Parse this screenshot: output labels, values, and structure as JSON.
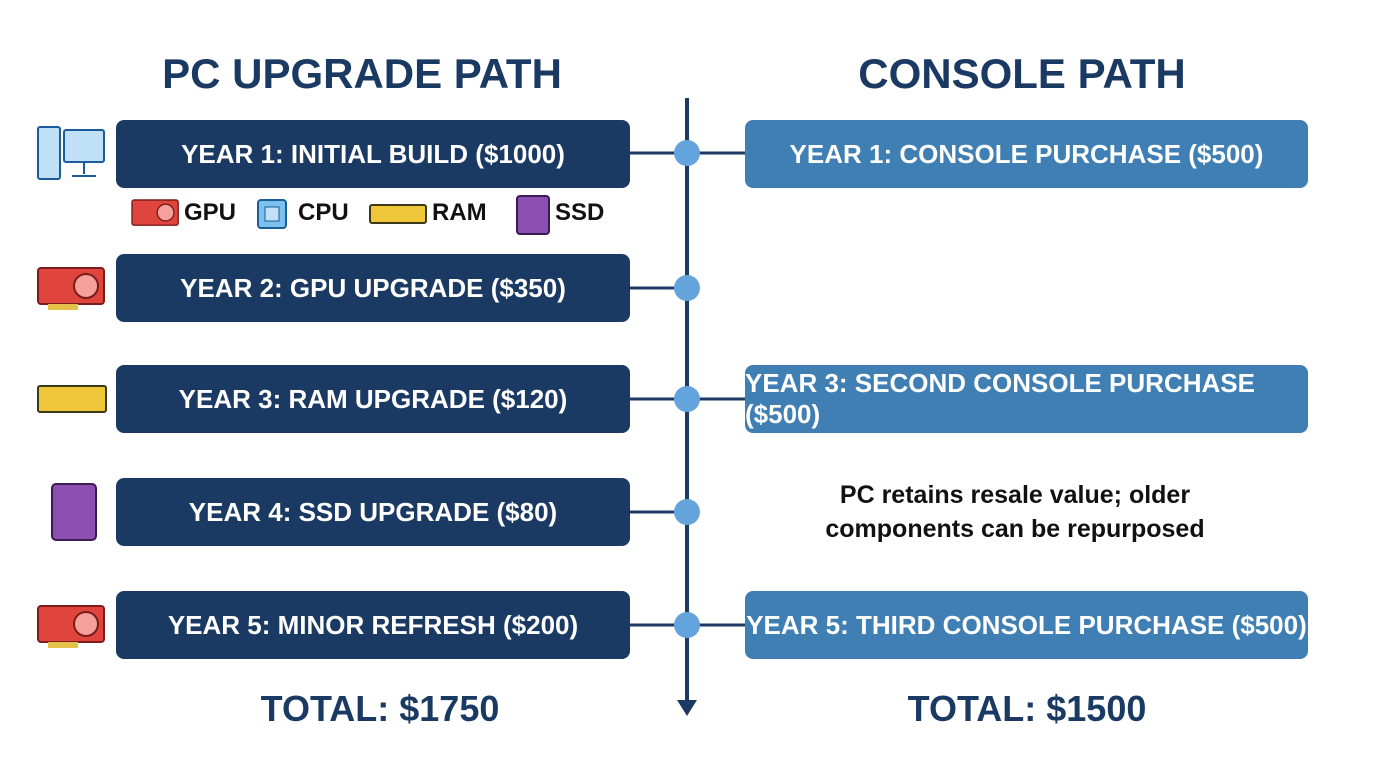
{
  "pc": {
    "title": "PC UPGRADE PATH",
    "steps": [
      "YEAR 1: INITIAL BUILD ($1000)",
      "YEAR 2: GPU UPGRADE ($350)",
      "YEAR 3: RAM UPGRADE ($120)",
      "YEAR 4: SSD UPGRADE ($80)",
      "YEAR 5: MINOR REFRESH ($200)"
    ],
    "components": [
      "GPU",
      "CPU",
      "RAM",
      "SSD"
    ],
    "total": "TOTAL: $1750"
  },
  "console": {
    "title": "CONSOLE PATH",
    "steps": [
      "YEAR 1: CONSOLE PURCHASE ($500)",
      "YEAR 3: SECOND CONSOLE PURCHASE ($500)",
      "YEAR 5: THIRD CONSOLE PURCHASE ($500)"
    ],
    "note": "PC retains resale value; older components can be repurposed",
    "total": "TOTAL: $1500"
  }
}
